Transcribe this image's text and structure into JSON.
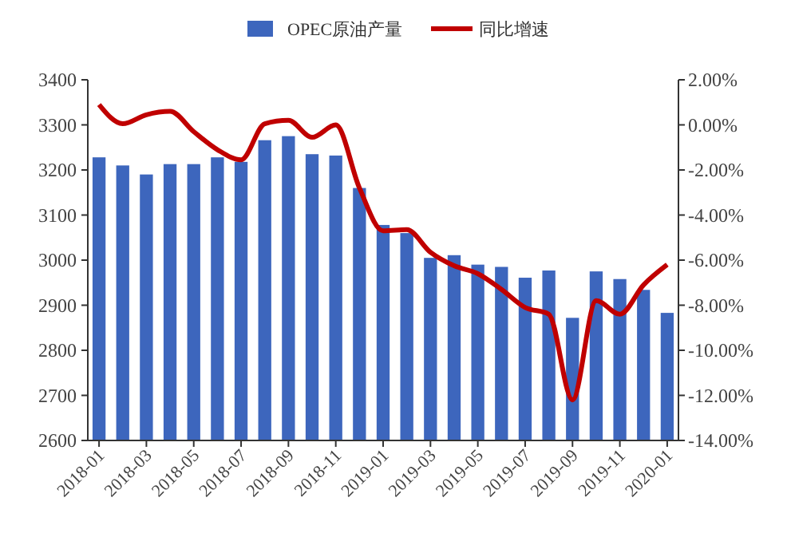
{
  "chart_data": {
    "type": "bar",
    "categories": [
      "2018-01",
      null,
      "2018-03",
      null,
      "2018-05",
      null,
      "2018-07",
      null,
      "2018-09",
      null,
      "2018-11",
      null,
      "2019-01",
      null,
      "2019-03",
      null,
      "2019-05",
      null,
      "2019-07",
      null,
      "2019-09",
      null,
      "2019-11",
      null,
      "2020-01"
    ],
    "series": [
      {
        "name": "OPEC原油产量",
        "color": "#3d66bd",
        "values": [
          3228,
          3210,
          3190,
          3213,
          3213,
          3228,
          3218,
          3266,
          3275,
          3235,
          3232,
          3160,
          3078,
          3060,
          3005,
          3011,
          2990,
          2985,
          2961,
          2977,
          2872,
          2975,
          2958,
          2934,
          2883
        ]
      },
      {
        "name": "同比增速",
        "type": "line",
        "axis": "y2",
        "color": "#c00000",
        "values": [
          0.9,
          0.05,
          0.45,
          0.6,
          -0.3,
          -1.1,
          -1.55,
          0.05,
          0.2,
          -0.55,
          0.0,
          -2.8,
          -4.7,
          -4.65,
          -5.65,
          -6.25,
          -6.6,
          -7.3,
          -8.1,
          -8.4,
          -12.2,
          -7.8,
          -8.4,
          -7.1,
          -6.2
        ]
      }
    ],
    "ylim": [
      2600,
      3400
    ],
    "yticks": [
      2600,
      2700,
      2800,
      2900,
      3000,
      3100,
      3200,
      3300,
      3400
    ],
    "y2lim": [
      -14,
      2
    ],
    "y2ticks": [
      {
        "value": 2,
        "label": "2.00%"
      },
      {
        "value": 0,
        "label": "0.00%"
      },
      {
        "value": -2,
        "label": "-2.00%"
      },
      {
        "value": -4,
        "label": "-4.00%"
      },
      {
        "value": -6,
        "label": "-6.00%"
      },
      {
        "value": -8,
        "label": "-8.00%"
      },
      {
        "value": -10,
        "label": "-10.00%"
      },
      {
        "value": -12,
        "label": "-12.00%"
      },
      {
        "value": -14,
        "label": "-14.00%"
      }
    ],
    "grid": false,
    "legend": "top"
  }
}
